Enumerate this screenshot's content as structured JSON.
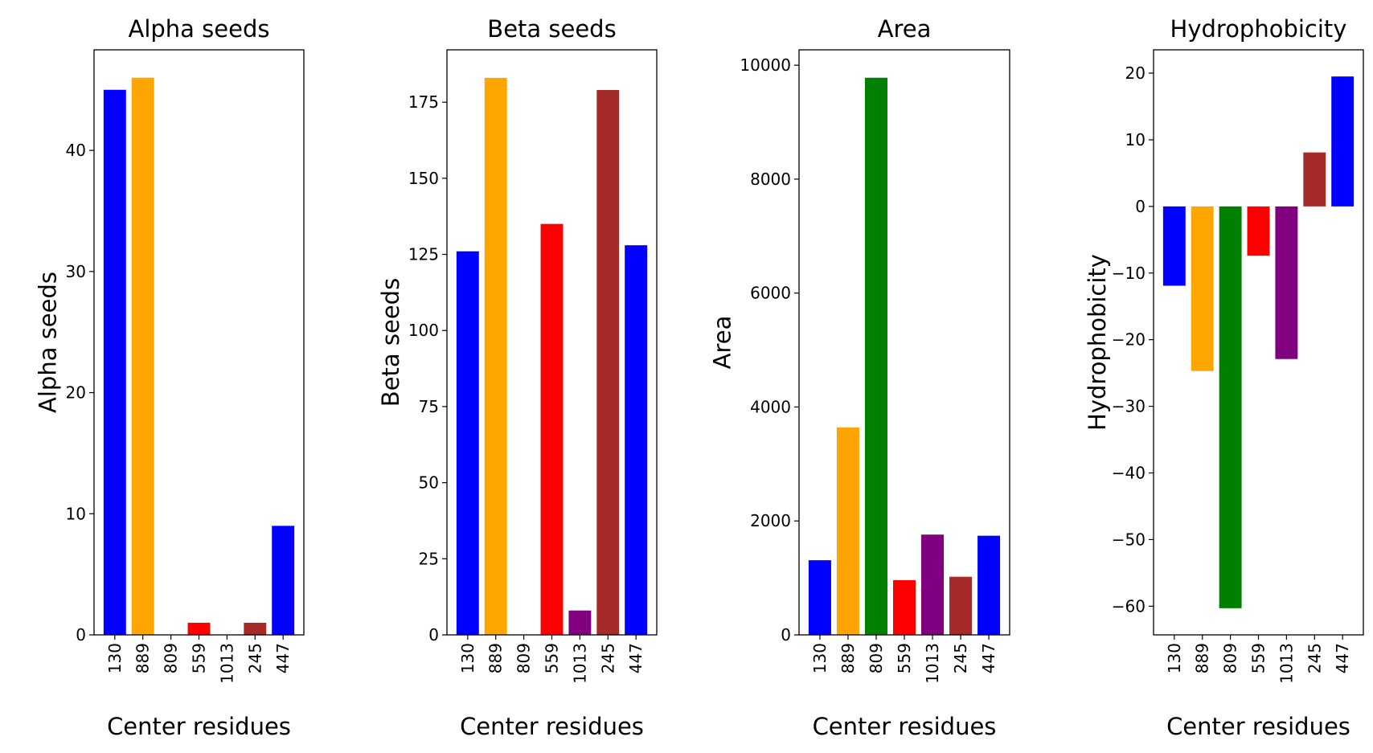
{
  "chart_data": [
    {
      "type": "bar",
      "title": "Alpha seeds",
      "xlabel": "Center residues",
      "ylabel": "Alpha seeds",
      "categories": [
        "130",
        "889",
        "809",
        "559",
        "1013",
        "245",
        "447"
      ],
      "values": [
        45,
        46,
        0,
        1,
        0,
        1,
        9
      ],
      "colors": [
        "#0000ff",
        "#ffa500",
        "#008000",
        "#ff0000",
        "#800080",
        "#a52a2a",
        "#0000ff"
      ],
      "ylim": [
        0,
        48.3
      ],
      "yticks": [
        0,
        10,
        20,
        30,
        40
      ],
      "grid": false
    },
    {
      "type": "bar",
      "title": "Beta seeds",
      "xlabel": "Center residues",
      "ylabel": "Beta seeds",
      "categories": [
        "130",
        "889",
        "809",
        "559",
        "1013",
        "245",
        "447"
      ],
      "values": [
        126,
        183,
        0,
        135,
        8,
        179,
        128
      ],
      "colors": [
        "#0000ff",
        "#ffa500",
        "#008000",
        "#ff0000",
        "#800080",
        "#a52a2a",
        "#0000ff"
      ],
      "ylim": [
        0,
        192.2
      ],
      "yticks": [
        0,
        25,
        50,
        75,
        100,
        125,
        150,
        175
      ],
      "grid": false
    },
    {
      "type": "bar",
      "title": "Area",
      "xlabel": "Center residues",
      "ylabel": "Area",
      "categories": [
        "130",
        "889",
        "809",
        "559",
        "1013",
        "245",
        "447"
      ],
      "values": [
        1310,
        3640,
        9780,
        960,
        1760,
        1020,
        1740
      ],
      "colors": [
        "#0000ff",
        "#ffa500",
        "#008000",
        "#ff0000",
        "#800080",
        "#a52a2a",
        "#0000ff"
      ],
      "ylim": [
        0,
        10270
      ],
      "yticks": [
        0,
        2000,
        4000,
        6000,
        8000,
        10000
      ],
      "grid": false
    },
    {
      "type": "bar",
      "title": "Hydrophobicity",
      "xlabel": "Center residues",
      "ylabel": "Hydrophobicity",
      "categories": [
        "130",
        "889",
        "809",
        "559",
        "1013",
        "245",
        "447"
      ],
      "values": [
        -11.9,
        -24.7,
        -60.3,
        -7.4,
        -22.9,
        8.1,
        19.5
      ],
      "colors": [
        "#0000ff",
        "#ffa500",
        "#008000",
        "#ff0000",
        "#800080",
        "#a52a2a",
        "#0000ff"
      ],
      "ylim": [
        -64.3,
        23.5
      ],
      "yticks": [
        -60,
        -50,
        -40,
        -30,
        -20,
        -10,
        0,
        10,
        20
      ],
      "grid": false
    }
  ]
}
